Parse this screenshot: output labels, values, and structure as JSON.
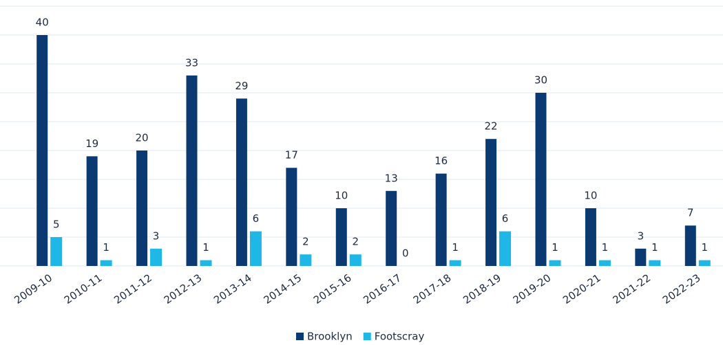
{
  "chart_data": {
    "type": "bar",
    "categories": [
      "2009-10",
      "2010-11",
      "2011-12",
      "2012-13",
      "2013-14",
      "2014-15",
      "2015-16",
      "2016-17",
      "2017-18",
      "2018-19",
      "2019-20",
      "2020-21",
      "2021-22",
      "2022-23"
    ],
    "series": [
      {
        "name": "Brooklyn",
        "color": "#0b3a73",
        "values": [
          40,
          19,
          20,
          33,
          29,
          17,
          10,
          13,
          16,
          22,
          30,
          10,
          3,
          7
        ]
      },
      {
        "name": "Footscray",
        "color": "#1fb8e6",
        "values": [
          5,
          1,
          3,
          1,
          6,
          2,
          2,
          0,
          1,
          6,
          1,
          1,
          1,
          1
        ]
      }
    ],
    "ylim": [
      0,
      45
    ],
    "yticks": [
      0,
      5,
      10,
      15,
      20,
      25,
      30,
      35,
      40,
      45
    ],
    "grid": true,
    "legend": "bottom"
  }
}
